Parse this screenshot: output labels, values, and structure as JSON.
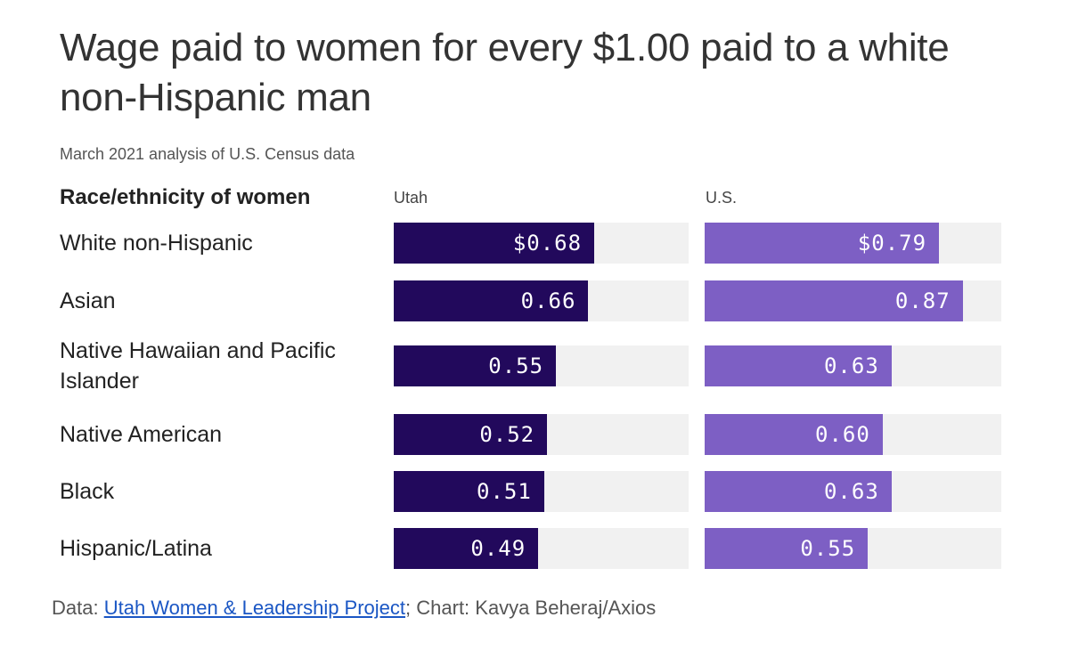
{
  "title": "Wage paid to women for every $1.00 paid to a white non-Hispanic man",
  "subtitle": "March 2021 analysis of U.S. Census data",
  "footer": {
    "prefix": "Data: ",
    "link": "Utah Women & Leadership Project",
    "suffix": "; Chart: Kavya Beheraj/Axios"
  },
  "colors": {
    "utah": "#22095c",
    "us": "#7d5fc4",
    "track": "#f1f1f1"
  },
  "chart_data": {
    "type": "bar",
    "orientation": "horizontal",
    "row_header": "Race/ethnicity of women",
    "categories": [
      "White non-Hispanic",
      "Asian",
      "Native Hawaiian and Pacific Islander",
      "Native American",
      "Black",
      "Hispanic/Latina"
    ],
    "series": [
      {
        "name": "Utah",
        "values": [
          0.68,
          0.66,
          0.55,
          0.52,
          0.51,
          0.49
        ],
        "labels": [
          "$0.68",
          "0.66",
          "0.55",
          "0.52",
          "0.51",
          "0.49"
        ]
      },
      {
        "name": "U.S.",
        "values": [
          0.79,
          0.87,
          0.63,
          0.6,
          0.63,
          0.55
        ],
        "labels": [
          "$0.79",
          "0.87",
          "0.63",
          "0.60",
          "0.63",
          "0.55"
        ]
      }
    ],
    "xlim": [
      0,
      1
    ],
    "grid": false
  }
}
